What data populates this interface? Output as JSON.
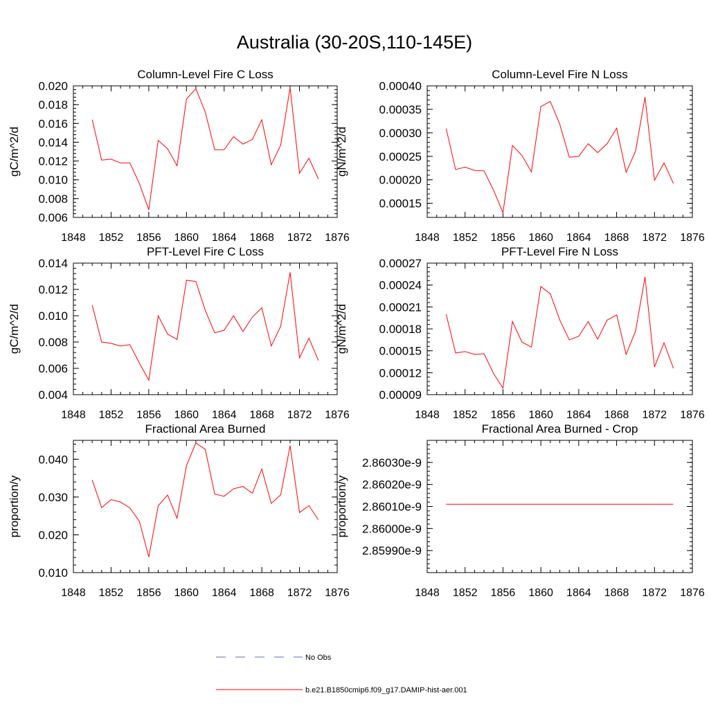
{
  "figure": {
    "title": "Australia (30-20S,110-145E)"
  },
  "legend": {
    "items": [
      {
        "label": "No Obs",
        "color": "#5b6bc0",
        "style": "dashed"
      },
      {
        "label": "b.e21.B1850cmip6.f09_g17.DAMIP-hist-aer.001",
        "color": "#ff0000",
        "style": "solid"
      }
    ]
  },
  "colors": {
    "series": "#ff0000",
    "axes": "#000000"
  },
  "chart_data": [
    {
      "type": "line",
      "title": "Column-Level Fire C Loss",
      "ylabel": "gC/m^2/d",
      "xlim": [
        1848,
        1876
      ],
      "ylim": [
        0.006,
        0.02
      ],
      "xticks": [
        "1848",
        "1852",
        "1856",
        "1860",
        "1864",
        "1868",
        "1872",
        "1876"
      ],
      "yticks": [
        "0.006",
        "0.008",
        "0.010",
        "0.012",
        "0.014",
        "0.016",
        "0.018",
        "0.020"
      ],
      "x": [
        1850,
        1851,
        1852,
        1853,
        1854,
        1855,
        1856,
        1857,
        1858,
        1859,
        1860,
        1861,
        1862,
        1863,
        1864,
        1865,
        1866,
        1867,
        1868,
        1869,
        1870,
        1871,
        1872,
        1873,
        1874
      ],
      "series": [
        {
          "values": [
            0.0164,
            0.0121,
            0.0122,
            0.0118,
            0.0118,
            0.0096,
            0.0068,
            0.0142,
            0.0133,
            0.0115,
            0.0186,
            0.0197,
            0.0172,
            0.0132,
            0.0132,
            0.0146,
            0.0138,
            0.0143,
            0.0164,
            0.0116,
            0.0137,
            0.0198,
            0.0107,
            0.0123,
            0.0101
          ]
        }
      ]
    },
    {
      "type": "line",
      "title": "Column-Level Fire N Loss",
      "ylabel": "gN/m^2/d",
      "xlim": [
        1848,
        1876
      ],
      "ylim": [
        0.00012,
        0.0004
      ],
      "xticks": [
        "1848",
        "1852",
        "1856",
        "1860",
        "1864",
        "1868",
        "1872",
        "1876"
      ],
      "yticks": [
        "0.00015",
        "0.00020",
        "0.00025",
        "0.00030",
        "0.00035",
        "0.00040"
      ],
      "x": [
        1850,
        1851,
        1852,
        1853,
        1854,
        1855,
        1856,
        1857,
        1858,
        1859,
        1860,
        1861,
        1862,
        1863,
        1864,
        1865,
        1866,
        1867,
        1868,
        1869,
        1870,
        1871,
        1872,
        1873,
        1874
      ],
      "series": [
        {
          "values": [
            0.000309,
            0.000222,
            0.000227,
            0.00022,
            0.000219,
            0.000178,
            0.00013,
            0.000273,
            0.000252,
            0.000217,
            0.000356,
            0.000367,
            0.000318,
            0.000248,
            0.00025,
            0.000277,
            0.000258,
            0.000277,
            0.00031,
            0.000216,
            0.000261,
            0.000376,
            0.000199,
            0.000236,
            0.000192
          ]
        }
      ]
    },
    {
      "type": "line",
      "title": "PFT-Level Fire C Loss",
      "ylabel": "gC/m^2/d",
      "xlim": [
        1848,
        1876
      ],
      "ylim": [
        0.004,
        0.014
      ],
      "xticks": [
        "1848",
        "1852",
        "1856",
        "1860",
        "1864",
        "1868",
        "1872",
        "1876"
      ],
      "yticks": [
        "0.004",
        "0.006",
        "0.008",
        "0.010",
        "0.012",
        "0.014"
      ],
      "x": [
        1850,
        1851,
        1852,
        1853,
        1854,
        1855,
        1856,
        1857,
        1858,
        1859,
        1860,
        1861,
        1862,
        1863,
        1864,
        1865,
        1866,
        1867,
        1868,
        1869,
        1870,
        1871,
        1872,
        1873,
        1874
      ],
      "series": [
        {
          "values": [
            0.0108,
            0.008,
            0.0079,
            0.0077,
            0.0078,
            0.0064,
            0.0051,
            0.01,
            0.0086,
            0.0082,
            0.0127,
            0.0126,
            0.0104,
            0.0087,
            0.0089,
            0.01,
            0.0088,
            0.0099,
            0.0106,
            0.0077,
            0.0092,
            0.0133,
            0.0068,
            0.0083,
            0.0066
          ]
        }
      ]
    },
    {
      "type": "line",
      "title": "PFT-Level Fire N Loss",
      "ylabel": "gN/m^2/d",
      "xlim": [
        1848,
        1876
      ],
      "ylim": [
        9e-05,
        0.00027
      ],
      "xticks": [
        "1848",
        "1852",
        "1856",
        "1860",
        "1864",
        "1868",
        "1872",
        "1876"
      ],
      "yticks": [
        "0.00009",
        "0.00012",
        "0.00015",
        "0.00018",
        "0.00021",
        "0.00024",
        "0.00027"
      ],
      "x": [
        1850,
        1851,
        1852,
        1853,
        1854,
        1855,
        1856,
        1857,
        1858,
        1859,
        1860,
        1861,
        1862,
        1863,
        1864,
        1865,
        1866,
        1867,
        1868,
        1869,
        1870,
        1871,
        1872,
        1873,
        1874
      ],
      "series": [
        {
          "values": [
            0.0002,
            0.000147,
            0.000149,
            0.000145,
            0.000146,
            0.000119,
            9.9e-05,
            0.00019,
            0.000162,
            0.000155,
            0.000238,
            0.000228,
            0.000192,
            0.000165,
            0.00017,
            0.00019,
            0.000166,
            0.000192,
            0.000199,
            0.000145,
            0.000177,
            0.000251,
            0.000128,
            0.000161,
            0.000126
          ]
        }
      ]
    },
    {
      "type": "line",
      "title": "Fractional Area Burned",
      "ylabel": "proportion/y",
      "xlim": [
        1848,
        1876
      ],
      "ylim": [
        0.01,
        0.045
      ],
      "xticks": [
        "1848",
        "1852",
        "1856",
        "1860",
        "1864",
        "1868",
        "1872",
        "1876"
      ],
      "yticks": [
        "0.010",
        "0.020",
        "0.030",
        "0.040"
      ],
      "x": [
        1850,
        1851,
        1852,
        1853,
        1854,
        1855,
        1856,
        1857,
        1858,
        1859,
        1860,
        1861,
        1862,
        1863,
        1864,
        1865,
        1866,
        1867,
        1868,
        1869,
        1870,
        1871,
        1872,
        1873,
        1874
      ],
      "series": [
        {
          "values": [
            0.0345,
            0.0272,
            0.0293,
            0.0287,
            0.0271,
            0.0236,
            0.0141,
            0.0277,
            0.0305,
            0.0244,
            0.0383,
            0.0443,
            0.0426,
            0.0308,
            0.0302,
            0.0322,
            0.0328,
            0.031,
            0.0374,
            0.0283,
            0.0306,
            0.0436,
            0.0259,
            0.0277,
            0.024
          ]
        }
      ]
    },
    {
      "type": "line",
      "title": "Fractional Area Burned - Crop",
      "ylabel": "proportion/y",
      "xlim": [
        1848,
        1876
      ],
      "ylim": [
        2.8598e-09,
        2.8604e-09
      ],
      "xticks": [
        "1848",
        "1852",
        "1856",
        "1860",
        "1864",
        "1868",
        "1872",
        "1876"
      ],
      "yticks": [
        "2.85990e-9",
        "2.86000e-9",
        "2.86010e-9",
        "2.86020e-9",
        "2.86030e-9"
      ],
      "x": [
        1850,
        1851,
        1852,
        1853,
        1854,
        1855,
        1856,
        1857,
        1858,
        1859,
        1860,
        1861,
        1862,
        1863,
        1864,
        1865,
        1866,
        1867,
        1868,
        1869,
        1870,
        1871,
        1872,
        1873,
        1874
      ],
      "series": [
        {
          "values": [
            2.86011e-09,
            2.86011e-09,
            2.86011e-09,
            2.86011e-09,
            2.86011e-09,
            2.86011e-09,
            2.86011e-09,
            2.86011e-09,
            2.86011e-09,
            2.86011e-09,
            2.86011e-09,
            2.86011e-09,
            2.86011e-09,
            2.86011e-09,
            2.86011e-09,
            2.86011e-09,
            2.86011e-09,
            2.86011e-09,
            2.86011e-09,
            2.86011e-09,
            2.86011e-09,
            2.86011e-09,
            2.86011e-09,
            2.86011e-09,
            2.86011e-09
          ]
        }
      ]
    }
  ]
}
